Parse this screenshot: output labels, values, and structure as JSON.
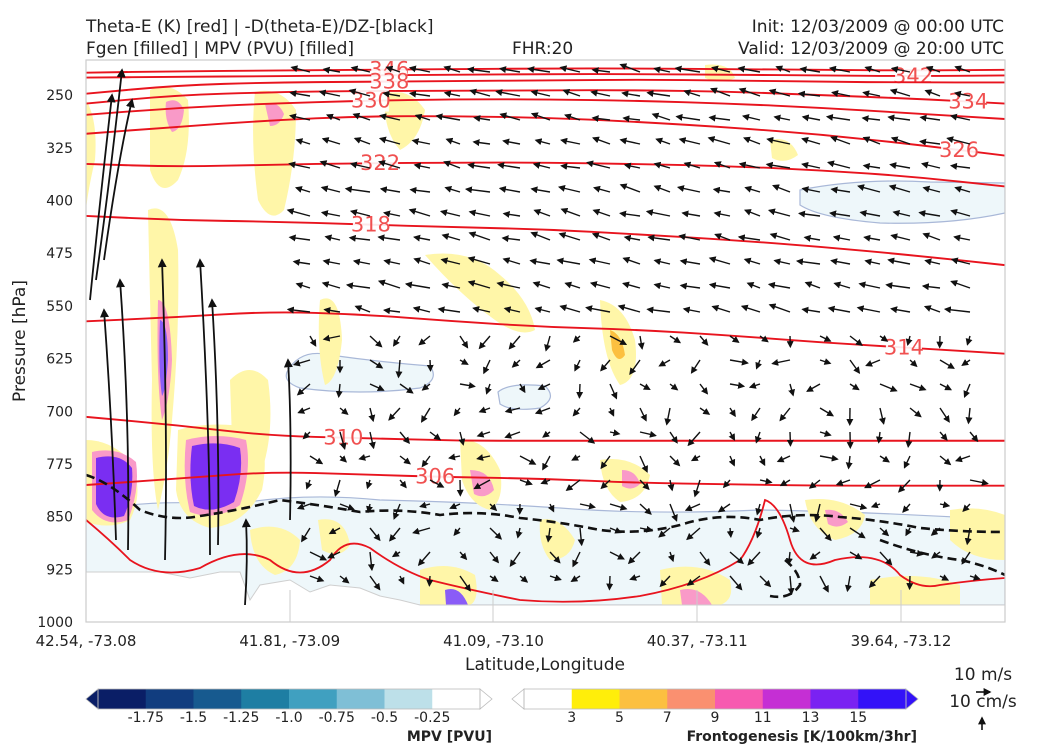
{
  "header": {
    "title_line1": "Theta-E (K) [red] | -D(theta-E)/DZ-[black]",
    "title_line2": "Fgen [filled] | MPV (PVU) [filled]",
    "fhr": "FHR:20",
    "init": "Init: 12/03/2009 @ 00:00 UTC",
    "valid": "Valid: 12/03/2009 @ 20:00 UTC"
  },
  "chart_data": {
    "type": "cross-section",
    "xlabel": "Latitude,Longitude",
    "ylabel": "Pressure [hPa]",
    "ylim": [
      1000,
      200
    ],
    "x_ticks": [
      "42.54, -73.08",
      "41.81, -73.09",
      "41.09, -73.10",
      "40.37, -73.11",
      "39.64, -73.12"
    ],
    "y_ticks": [
      250,
      325,
      400,
      475,
      550,
      625,
      700,
      775,
      850,
      925,
      1000
    ],
    "theta_e_contours": [
      {
        "label": "346",
        "p": [
          218,
          216,
          215,
          214,
          213,
          212,
          212,
          213,
          214,
          215,
          214
        ]
      },
      {
        "label": "342",
        "p": [
          225,
          224,
          223,
          222,
          221,
          220,
          220,
          221,
          222,
          223,
          222
        ]
      },
      {
        "label": "338",
        "p": [
          248,
          236,
          232,
          231,
          230,
          229,
          228,
          229,
          231,
          232,
          232
        ]
      },
      {
        "label": "334",
        "p": [
          262,
          250,
          246,
          244,
          244,
          243,
          243,
          245,
          250,
          255,
          262
        ]
      },
      {
        "label": "330",
        "p": [
          278,
          268,
          262,
          258,
          256,
          256,
          258,
          262,
          268,
          276,
          284
        ]
      },
      {
        "label": "326",
        "p": [
          305,
          295,
          286,
          280,
          280,
          282,
          288,
          296,
          306,
          320,
          336
        ]
      },
      {
        "label": "322",
        "p": [
          348,
          352,
          349,
          347,
          346,
          346,
          348,
          351,
          357,
          366,
          380
        ]
      },
      {
        "label": "318",
        "p": [
          422,
          428,
          430,
          434,
          438,
          441,
          448,
          456,
          466,
          478,
          492
        ]
      },
      {
        "label": "314",
        "p": [
          572,
          566,
          558,
          562,
          572,
          580,
          584,
          592,
          602,
          610,
          618
        ]
      },
      {
        "label": "310",
        "p": [
          708,
          720,
          735,
          738,
          742,
          742,
          742,
          742,
          742,
          742,
          742
        ]
      },
      {
        "label": "306",
        "p": [
          805,
          796,
          786,
          790,
          794,
          796,
          802,
          804,
          806,
          806,
          806
        ]
      }
    ],
    "colorbar_mpv": {
      "label": "MPV [PVU]",
      "ticks": [
        "-1.75",
        "-1.5",
        "-1.25",
        "-1.0",
        "-0.75",
        "-0.5",
        "-0.25"
      ],
      "colors": [
        "#0a1e66",
        "#113d7f",
        "#175a8f",
        "#1e7ea3",
        "#40a0c0",
        "#7fbfd6",
        "#bde0e9",
        "#ffffff"
      ]
    },
    "colorbar_fgen": {
      "label": "Frontogenesis [K/100km/3hr]",
      "ticks": [
        "3",
        "5",
        "7",
        "9",
        "11",
        "13",
        "15"
      ],
      "colors": [
        "#ffffff",
        "#ffee0a",
        "#fcc040",
        "#fa9070",
        "#f75ab0",
        "#c52fd4",
        "#7a22f2",
        "#3312f8"
      ]
    },
    "vector_key": {
      "u_label": "10 m/s",
      "w_label": "10 cm/s"
    }
  }
}
